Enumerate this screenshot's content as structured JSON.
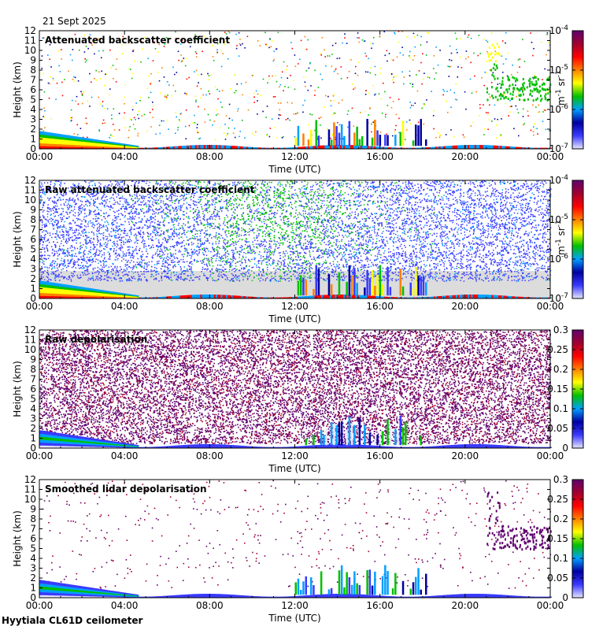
{
  "date_label": "21 Sept 2025",
  "site_label": "Hyytiala CL61D ceilometer",
  "x_ticks": [
    "00:00",
    "04:00",
    "08:00",
    "12:00",
    "16:00",
    "20:00",
    "00:00"
  ],
  "y_ticks": [
    "0",
    "1",
    "2",
    "3",
    "4",
    "5",
    "6",
    "7",
    "8",
    "9",
    "10",
    "11",
    "12"
  ],
  "xlabel": "Time (UTC)",
  "ylabel": "Height (km)",
  "colors": {
    "colormap": [
      "#e6e6ff",
      "#3a3aff",
      "#0000a0",
      "#00a0ff",
      "#00c000",
      "#ffff00",
      "#ff8000",
      "#ff0000",
      "#a00030",
      "#600070"
    ],
    "missing": "#dcdcdc"
  },
  "chart_data": [
    {
      "type": "heatmap",
      "title": "Attenuated backscatter coefficient",
      "x_range_hours": [
        0,
        24
      ],
      "ylim_km": [
        0,
        12
      ],
      "colorbar": {
        "scale": "log",
        "range": [
          1e-07,
          0.0001
        ],
        "ticks": [
          "10",
          "10",
          "10",
          "10"
        ],
        "tick_exponents": [
          "-7",
          "-6",
          "-5",
          "-4"
        ],
        "unit_base": [
          "m",
          "sr"
        ],
        "unit_exponents": [
          "-1",
          "-1"
        ]
      },
      "features": [
        {
          "desc": "aerosol layer",
          "x_hours": [
            0,
            4.5
          ],
          "top_km_start": 1.8,
          "top_km_end": 0.3
        },
        {
          "desc": "low cloud/aerosol",
          "x_hours": [
            7.5,
            20
          ],
          "base_km": 0.2,
          "top_km": 0.5
        },
        {
          "desc": "cloud columns",
          "x_hours": [
            12,
            18
          ],
          "top_km": 3.5
        },
        {
          "desc": "cirrus",
          "x_hours": [
            21,
            24
          ],
          "alt_km": [
            5,
            11
          ]
        }
      ]
    },
    {
      "type": "heatmap",
      "title": "Raw attenuated backscatter coefficient",
      "x_range_hours": [
        0,
        24
      ],
      "ylim_km": [
        0,
        12
      ],
      "colorbar": {
        "scale": "log",
        "range": [
          1e-07,
          0.0001
        ],
        "ticks": [
          "10",
          "10",
          "10",
          "10"
        ],
        "tick_exponents": [
          "-7",
          "-6",
          "-5",
          "-4"
        ],
        "unit_base": [
          "m",
          "sr"
        ],
        "unit_exponents": [
          "-1",
          "-1"
        ]
      },
      "features": [
        {
          "desc": "noise background",
          "x_hours": [
            0,
            24
          ],
          "alt_km": [
            2.5,
            12
          ]
        },
        {
          "desc": "cloud columns",
          "x_hours": [
            12,
            18
          ],
          "top_km": 3.5
        }
      ]
    },
    {
      "type": "heatmap",
      "title": "Raw depolarisation",
      "x_range_hours": [
        0,
        24
      ],
      "ylim_km": [
        0,
        12
      ],
      "colorbar": {
        "scale": "linear",
        "range": [
          0,
          0.3
        ],
        "ticks": [
          "0",
          "0.05",
          "0.1",
          "0.15",
          "0.2",
          "0.25",
          "0.3"
        ]
      }
    },
    {
      "type": "heatmap",
      "title": "Smoothed lidar depolarisation",
      "x_range_hours": [
        0,
        24
      ],
      "ylim_km": [
        0,
        12
      ],
      "colorbar": {
        "scale": "linear",
        "range": [
          0,
          0.3
        ],
        "ticks": [
          "0",
          "0.05",
          "0.1",
          "0.15",
          "0.2",
          "0.25",
          "0.3"
        ]
      }
    }
  ]
}
